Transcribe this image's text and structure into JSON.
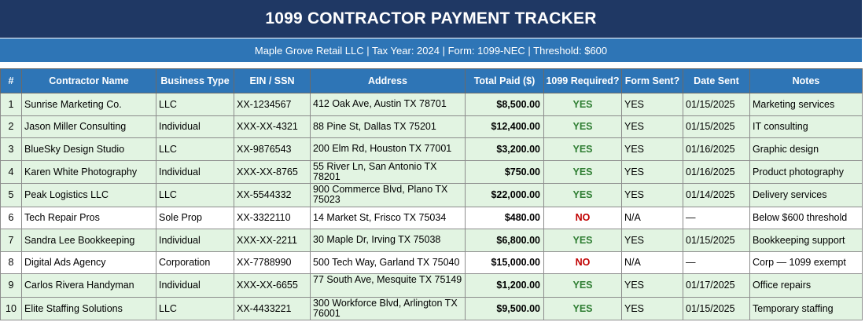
{
  "title": "1099 CONTRACTOR PAYMENT TRACKER",
  "subtitle": "Maple Grove Retail LLC  |  Tax Year: 2024  |  Form: 1099-NEC  |  Threshold: $600",
  "columns": [
    "#",
    "Contractor Name",
    "Business Type",
    "EIN / SSN",
    "Address",
    "Total Paid ($)",
    "1099 Required?",
    "Form Sent?",
    "Date Sent",
    "Notes"
  ],
  "rows": [
    {
      "num": "1",
      "name": "Sunrise Marketing Co.",
      "type": "LLC",
      "tin": "XX-1234567",
      "address": "412 Oak Ave, Austin TX 78701",
      "paid": "$8,500.00",
      "required": "YES",
      "sent": "YES",
      "date": "01/15/2025",
      "notes": "Marketing services"
    },
    {
      "num": "2",
      "name": "Jason Miller Consulting",
      "type": "Individual",
      "tin": "XXX-XX-4321",
      "address": "88 Pine St, Dallas TX 75201",
      "paid": "$12,400.00",
      "required": "YES",
      "sent": "YES",
      "date": "01/15/2025",
      "notes": "IT consulting"
    },
    {
      "num": "3",
      "name": "BlueSky Design Studio",
      "type": "LLC",
      "tin": "XX-9876543",
      "address": "200 Elm Rd, Houston TX 77001",
      "paid": "$3,200.00",
      "required": "YES",
      "sent": "YES",
      "date": "01/16/2025",
      "notes": "Graphic design"
    },
    {
      "num": "4",
      "name": "Karen White Photography",
      "type": "Individual",
      "tin": "XXX-XX-8765",
      "address": "55 River Ln, San Antonio TX 78201",
      "paid": "$750.00",
      "required": "YES",
      "sent": "YES",
      "date": "01/16/2025",
      "notes": "Product photography"
    },
    {
      "num": "5",
      "name": "Peak Logistics LLC",
      "type": "LLC",
      "tin": "XX-5544332",
      "address": "900 Commerce Blvd, Plano TX 75023",
      "paid": "$22,000.00",
      "required": "YES",
      "sent": "YES",
      "date": "01/14/2025",
      "notes": "Delivery services"
    },
    {
      "num": "6",
      "name": "Tech Repair Pros",
      "type": "Sole Prop",
      "tin": "XX-3322110",
      "address": "14 Market St, Frisco TX 75034",
      "paid": "$480.00",
      "required": "NO",
      "sent": "N/A",
      "date": "—",
      "notes": "Below $600 threshold"
    },
    {
      "num": "7",
      "name": "Sandra Lee Bookkeeping",
      "type": "Individual",
      "tin": "XXX-XX-2211",
      "address": "30 Maple Dr, Irving TX 75038",
      "paid": "$6,800.00",
      "required": "YES",
      "sent": "YES",
      "date": "01/15/2025",
      "notes": "Bookkeeping support"
    },
    {
      "num": "8",
      "name": "Digital Ads Agency",
      "type": "Corporation",
      "tin": "XX-7788990",
      "address": "500 Tech Way, Garland TX 75040",
      "paid": "$15,000.00",
      "required": "NO",
      "sent": "N/A",
      "date": "—",
      "notes": "Corp — 1099 exempt"
    },
    {
      "num": "9",
      "name": "Carlos Rivera Handyman",
      "type": "Individual",
      "tin": "XXX-XX-6655",
      "address": "77 South Ave, Mesquite TX 75149",
      "paid": "$1,200.00",
      "required": "YES",
      "sent": "YES",
      "date": "01/17/2025",
      "notes": "Office repairs"
    },
    {
      "num": "10",
      "name": "Elite Staffing Solutions",
      "type": "LLC",
      "tin": "XX-4433221",
      "address": "300 Workforce Blvd, Arlington TX 76001",
      "paid": "$9,500.00",
      "required": "YES",
      "sent": "YES",
      "date": "01/15/2025",
      "notes": "Temporary staffing"
    }
  ],
  "colors": {
    "title_bg": "#1f3864",
    "header_bg": "#2e75b6",
    "required_row_bg": "#e2f4e2",
    "yes_color": "#2e7d32",
    "no_color": "#c00000"
  }
}
